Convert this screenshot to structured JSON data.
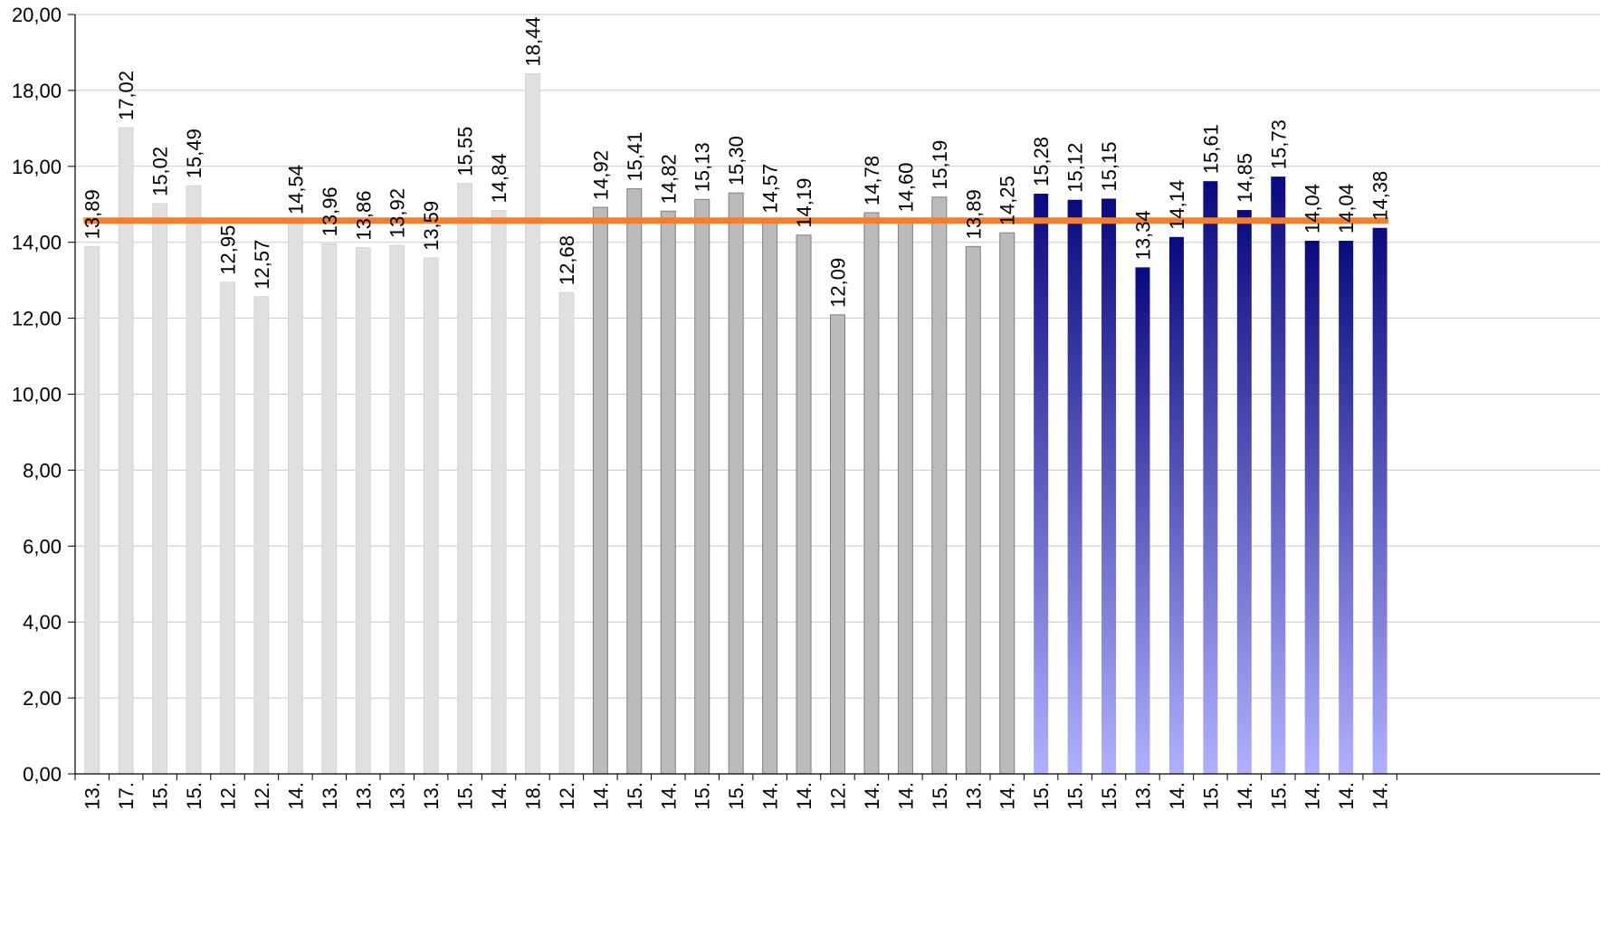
{
  "chart_data": {
    "type": "bar",
    "ylim": [
      0,
      20
    ],
    "yticks": [
      "0,00",
      "2,00",
      "4,00",
      "6,00",
      "8,00",
      "10,00",
      "12,00",
      "14,00",
      "16,00",
      "18,00",
      "20,00"
    ],
    "grid": true,
    "legend": "none",
    "categories": [
      "13.",
      "17.",
      "15.",
      "15.",
      "12.",
      "12.",
      "14.",
      "13.",
      "13.",
      "13.",
      "13.",
      "15.",
      "14.",
      "18.",
      "12.",
      "14.",
      "15.",
      "14.",
      "15.",
      "15.",
      "14.",
      "14.",
      "12.",
      "14.",
      "14.",
      "15.",
      "13.",
      "14.",
      "15.",
      "15.",
      "15.",
      "13.",
      "14.",
      "15.",
      "14.",
      "15.",
      "14.",
      "14.",
      "14."
    ],
    "values": [
      13.89,
      17.02,
      15.02,
      15.49,
      12.95,
      12.57,
      14.54,
      13.96,
      13.86,
      13.92,
      13.59,
      15.55,
      14.84,
      18.44,
      12.68,
      14.92,
      15.41,
      14.82,
      15.13,
      15.3,
      14.57,
      14.19,
      12.09,
      14.78,
      14.6,
      15.19,
      13.89,
      14.25,
      15.28,
      15.12,
      15.15,
      13.34,
      14.14,
      15.61,
      14.85,
      15.73,
      14.04,
      14.04,
      14.38
    ],
    "data_labels": [
      "13,89",
      "17,02",
      "15,02",
      "15,49",
      "12,95",
      "12,57",
      "14,54",
      "13,96",
      "13,86",
      "13,92",
      "13,59",
      "15,55",
      "14,84",
      "18,44",
      "12,68",
      "14,92",
      "15,41",
      "14,82",
      "15,13",
      "15,30",
      "14,57",
      "14,19",
      "12,09",
      "14,78",
      "14,60",
      "15,19",
      "13,89",
      "14,25",
      "15,28",
      "15,12",
      "15,15",
      "13,34",
      "14,14",
      "15,61",
      "14,85",
      "15,73",
      "14,04",
      "14,04",
      "14,38"
    ],
    "groups": [
      {
        "count": 15,
        "color": "#e0e0e0",
        "stroke": "#d0d0d0"
      },
      {
        "count": 13,
        "color": "#bbbbbb",
        "stroke": "#7f7f7f"
      },
      {
        "count": 11,
        "color_top": "#0a0a80",
        "color_bottom": "#b0b0ff"
      }
    ],
    "reference_line": {
      "value": 14.57,
      "color": "#f08030"
    },
    "colors": {
      "grid": "#c8c8c8",
      "axis": "#000000"
    }
  }
}
